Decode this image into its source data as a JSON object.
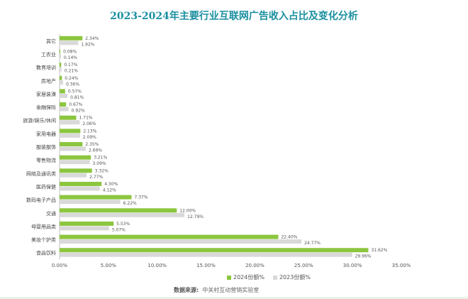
{
  "chart_data": {
    "type": "bar",
    "orientation": "horizontal",
    "title": "2023-2024年主要行业互联网广告收入占比及变化分析",
    "categories": [
      "其它",
      "工农业",
      "教育培训",
      "房地产",
      "家居装潢",
      "金融保险",
      "旅游/娱乐/休闲",
      "家用电器",
      "服装服饰",
      "零售物流",
      "网络及通讯类",
      "医药保健",
      "数码电子产品",
      "交通",
      "母婴用品类",
      "美妆个护类",
      "食品饮料"
    ],
    "series": [
      {
        "name": "2024份额%",
        "color": "#8cc63f",
        "values": [
          2.34,
          0.08,
          0.17,
          0.24,
          0.57,
          0.67,
          1.71,
          2.13,
          2.35,
          3.21,
          3.32,
          4.3,
          7.37,
          12.0,
          5.53,
          22.4,
          31.62
        ]
      },
      {
        "name": "2023份额%",
        "color": "#d9d9d9",
        "values": [
          1.92,
          0.14,
          0.21,
          0.36,
          0.81,
          0.92,
          2.06,
          2.09,
          2.69,
          3.09,
          2.77,
          4.12,
          6.22,
          12.79,
          5.07,
          24.77,
          29.96
        ]
      }
    ],
    "xlim": [
      0,
      35
    ],
    "xticks": [
      "0.00%",
      "5.00%",
      "10.00%",
      "15.00%",
      "20.00%",
      "25.00%",
      "30.00%",
      "35.00%"
    ],
    "grid": false,
    "legend": "bottom"
  },
  "source_label": "数据来源:",
  "source_text": "中关村互动营销实验室"
}
